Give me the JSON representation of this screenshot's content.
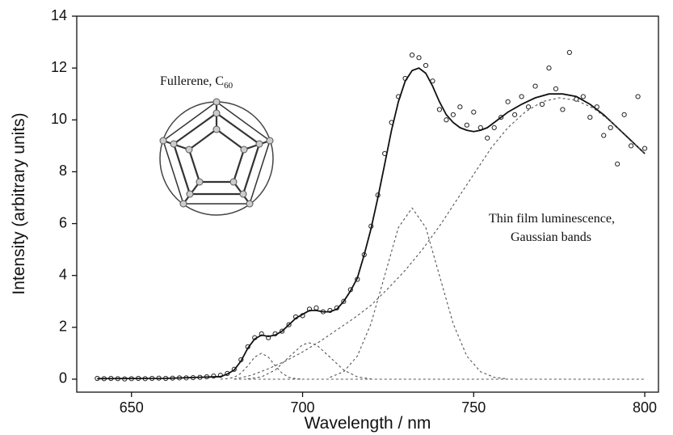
{
  "chart_data": {
    "type": "scatter",
    "x_label": "Wavelength / nm",
    "y_label": "Intensity (arbitrary units)",
    "xlim": [
      634,
      804
    ],
    "ylim": [
      -0.5,
      14
    ],
    "xticks": [
      650,
      700,
      750,
      800
    ],
    "yticks": [
      0,
      2,
      4,
      6,
      8,
      10,
      12,
      14
    ],
    "annotations": [
      {
        "text": "Fullerene, C",
        "subscript": "60"
      },
      {
        "text": "Thin film luminescence,"
      },
      {
        "text": "Gaussian bands"
      }
    ],
    "series": [
      {
        "style": "markers",
        "color": "#222222",
        "x": [
          640,
          642,
          644,
          646,
          648,
          650,
          652,
          654,
          656,
          658,
          660,
          662,
          664,
          666,
          668,
          670,
          672,
          674,
          676,
          678,
          680,
          682,
          684,
          686,
          688,
          690,
          692,
          694,
          696,
          698,
          700,
          702,
          704,
          706,
          708,
          710,
          712,
          714,
          716,
          718,
          720,
          722,
          724,
          726,
          728,
          730,
          732,
          734,
          736,
          738,
          740,
          742,
          744,
          746,
          748,
          750,
          752,
          754,
          756,
          758,
          760,
          762,
          764,
          766,
          768,
          770,
          772,
          774,
          776,
          778,
          780,
          782,
          784,
          786,
          788,
          790,
          792,
          794,
          796,
          798,
          800
        ],
        "values": [
          0.03,
          0.02,
          0.03,
          0.02,
          0.01,
          0.02,
          0.03,
          0.02,
          0.03,
          0.04,
          0.03,
          0.04,
          0.05,
          0.05,
          0.06,
          0.07,
          0.09,
          0.12,
          0.15,
          0.22,
          0.38,
          0.75,
          1.25,
          1.6,
          1.75,
          1.6,
          1.75,
          1.85,
          2.1,
          2.4,
          2.45,
          2.7,
          2.75,
          2.6,
          2.65,
          2.75,
          3.0,
          3.45,
          3.85,
          4.8,
          5.9,
          7.1,
          8.7,
          9.9,
          10.9,
          11.6,
          12.5,
          12.4,
          12.1,
          11.5,
          10.4,
          10.0,
          10.2,
          10.5,
          9.8,
          10.3,
          9.7,
          9.3,
          9.7,
          10.1,
          10.7,
          10.2,
          10.9,
          10.5,
          11.3,
          10.6,
          12.0,
          11.2,
          10.4,
          12.6,
          10.8,
          10.9,
          10.1,
          10.5,
          9.4,
          9.7,
          8.3,
          10.2,
          9.0,
          10.9,
          8.9
        ]
      },
      {
        "style": "line",
        "color": "#111111",
        "x": [
          640,
          660,
          676,
          678,
          680,
          682,
          684,
          686,
          688,
          690,
          692,
          694,
          696,
          698,
          700,
          702,
          704,
          706,
          708,
          710,
          712,
          714,
          716,
          718,
          720,
          722,
          724,
          726,
          728,
          730,
          732,
          734,
          736,
          738,
          740,
          742,
          744,
          746,
          748,
          750,
          752,
          754,
          756,
          758,
          760,
          764,
          768,
          772,
          776,
          780,
          784,
          788,
          792,
          796,
          800
        ],
        "values": [
          0.02,
          0.03,
          0.1,
          0.2,
          0.35,
          0.7,
          1.2,
          1.55,
          1.7,
          1.65,
          1.7,
          1.85,
          2.1,
          2.35,
          2.5,
          2.65,
          2.65,
          2.6,
          2.6,
          2.7,
          3.0,
          3.4,
          3.9,
          4.8,
          5.8,
          7.0,
          8.3,
          9.6,
          10.7,
          11.5,
          11.9,
          12.0,
          11.8,
          11.3,
          10.7,
          10.2,
          9.9,
          9.7,
          9.6,
          9.55,
          9.6,
          9.7,
          9.9,
          10.1,
          10.3,
          10.6,
          10.85,
          11.0,
          11.0,
          10.9,
          10.6,
          10.2,
          9.7,
          9.2,
          8.7
        ]
      },
      {
        "style": "dashed",
        "color": "#555555",
        "x": [
          680,
          800
        ],
        "values": [
          0,
          0
        ]
      },
      {
        "style": "dashed",
        "color": "#555555",
        "x": [
          676,
          678,
          680,
          682,
          684,
          686,
          688,
          690,
          692,
          694,
          696,
          698,
          700
        ],
        "values": [
          0.0,
          0.02,
          0.07,
          0.23,
          0.52,
          0.85,
          1.0,
          0.85,
          0.52,
          0.23,
          0.07,
          0.02,
          0.0
        ]
      },
      {
        "style": "dashed",
        "color": "#555555",
        "x": [
          684,
          688,
          692,
          696,
          700,
          702,
          704,
          708,
          712,
          716,
          720
        ],
        "values": [
          0.01,
          0.09,
          0.35,
          0.85,
          1.33,
          1.4,
          1.33,
          0.85,
          0.35,
          0.09,
          0.01
        ]
      },
      {
        "style": "dashed",
        "color": "#555555",
        "x": [
          708,
          712,
          716,
          720,
          724,
          728,
          732,
          736,
          740,
          744,
          748,
          752,
          756,
          760
        ],
        "values": [
          0.07,
          0.29,
          0.89,
          2.14,
          4.0,
          5.85,
          6.6,
          5.85,
          4.0,
          2.14,
          0.89,
          0.29,
          0.07,
          0.01
        ]
      },
      {
        "style": "dashed",
        "color": "#555555",
        "x": [
          680,
          685,
          690,
          695,
          700,
          705,
          710,
          715,
          720,
          725,
          730,
          735,
          740,
          745,
          750,
          755,
          760,
          765,
          770,
          775,
          780,
          785,
          790,
          795,
          800
        ],
        "values": [
          0,
          0.15,
          0.4,
          0.7,
          1.05,
          1.45,
          1.9,
          2.35,
          2.85,
          3.5,
          4.2,
          5.0,
          5.9,
          6.9,
          7.9,
          8.9,
          9.7,
          10.3,
          10.7,
          10.85,
          10.75,
          10.45,
          9.95,
          9.35,
          8.7
        ]
      }
    ]
  }
}
